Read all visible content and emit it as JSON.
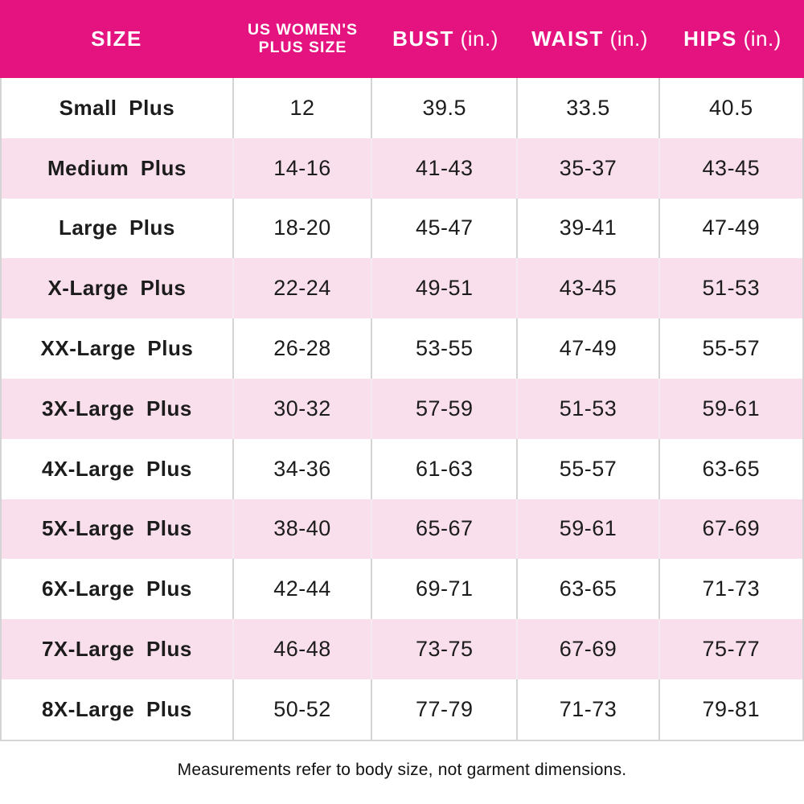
{
  "colors": {
    "header_bg": "#E5137F",
    "alt_row_bg": "#F9DEEB",
    "border": "#D4D4D4",
    "header_text": "#FFFFFF",
    "body_text": "#1C1C1C"
  },
  "table": {
    "columns": [
      {
        "label": "SIZE",
        "unit": ""
      },
      {
        "label": "US WOMEN'S\nPLUS SIZE",
        "unit": ""
      },
      {
        "label": "BUST",
        "unit": "(in.)"
      },
      {
        "label": "WAIST",
        "unit": "(in.)"
      },
      {
        "label": "HIPS",
        "unit": "(in.)"
      }
    ],
    "rows": [
      {
        "size": "Small Plus",
        "us_plus_size": "12",
        "bust": "39.5",
        "waist": "33.5",
        "hips": "40.5"
      },
      {
        "size": "Medium Plus",
        "us_plus_size": "14-16",
        "bust": "41-43",
        "waist": "35-37",
        "hips": "43-45"
      },
      {
        "size": "Large Plus",
        "us_plus_size": "18-20",
        "bust": "45-47",
        "waist": "39-41",
        "hips": "47-49"
      },
      {
        "size": "X-Large Plus",
        "us_plus_size": "22-24",
        "bust": "49-51",
        "waist": "43-45",
        "hips": "51-53"
      },
      {
        "size": "XX-Large Plus",
        "us_plus_size": "26-28",
        "bust": "53-55",
        "waist": "47-49",
        "hips": "55-57"
      },
      {
        "size": "3X-Large Plus",
        "us_plus_size": "30-32",
        "bust": "57-59",
        "waist": "51-53",
        "hips": "59-61"
      },
      {
        "size": "4X-Large Plus",
        "us_plus_size": "34-36",
        "bust": "61-63",
        "waist": "55-57",
        "hips": "63-65"
      },
      {
        "size": "5X-Large Plus",
        "us_plus_size": "38-40",
        "bust": "65-67",
        "waist": "59-61",
        "hips": "67-69"
      },
      {
        "size": "6X-Large Plus",
        "us_plus_size": "42-44",
        "bust": "69-71",
        "waist": "63-65",
        "hips": "71-73"
      },
      {
        "size": "7X-Large Plus",
        "us_plus_size": "46-48",
        "bust": "73-75",
        "waist": "67-69",
        "hips": "75-77"
      },
      {
        "size": "8X-Large Plus",
        "us_plus_size": "50-52",
        "bust": "77-79",
        "waist": "71-73",
        "hips": "79-81"
      }
    ]
  },
  "footer": {
    "note": "Measurements refer to body size, not garment dimensions."
  }
}
